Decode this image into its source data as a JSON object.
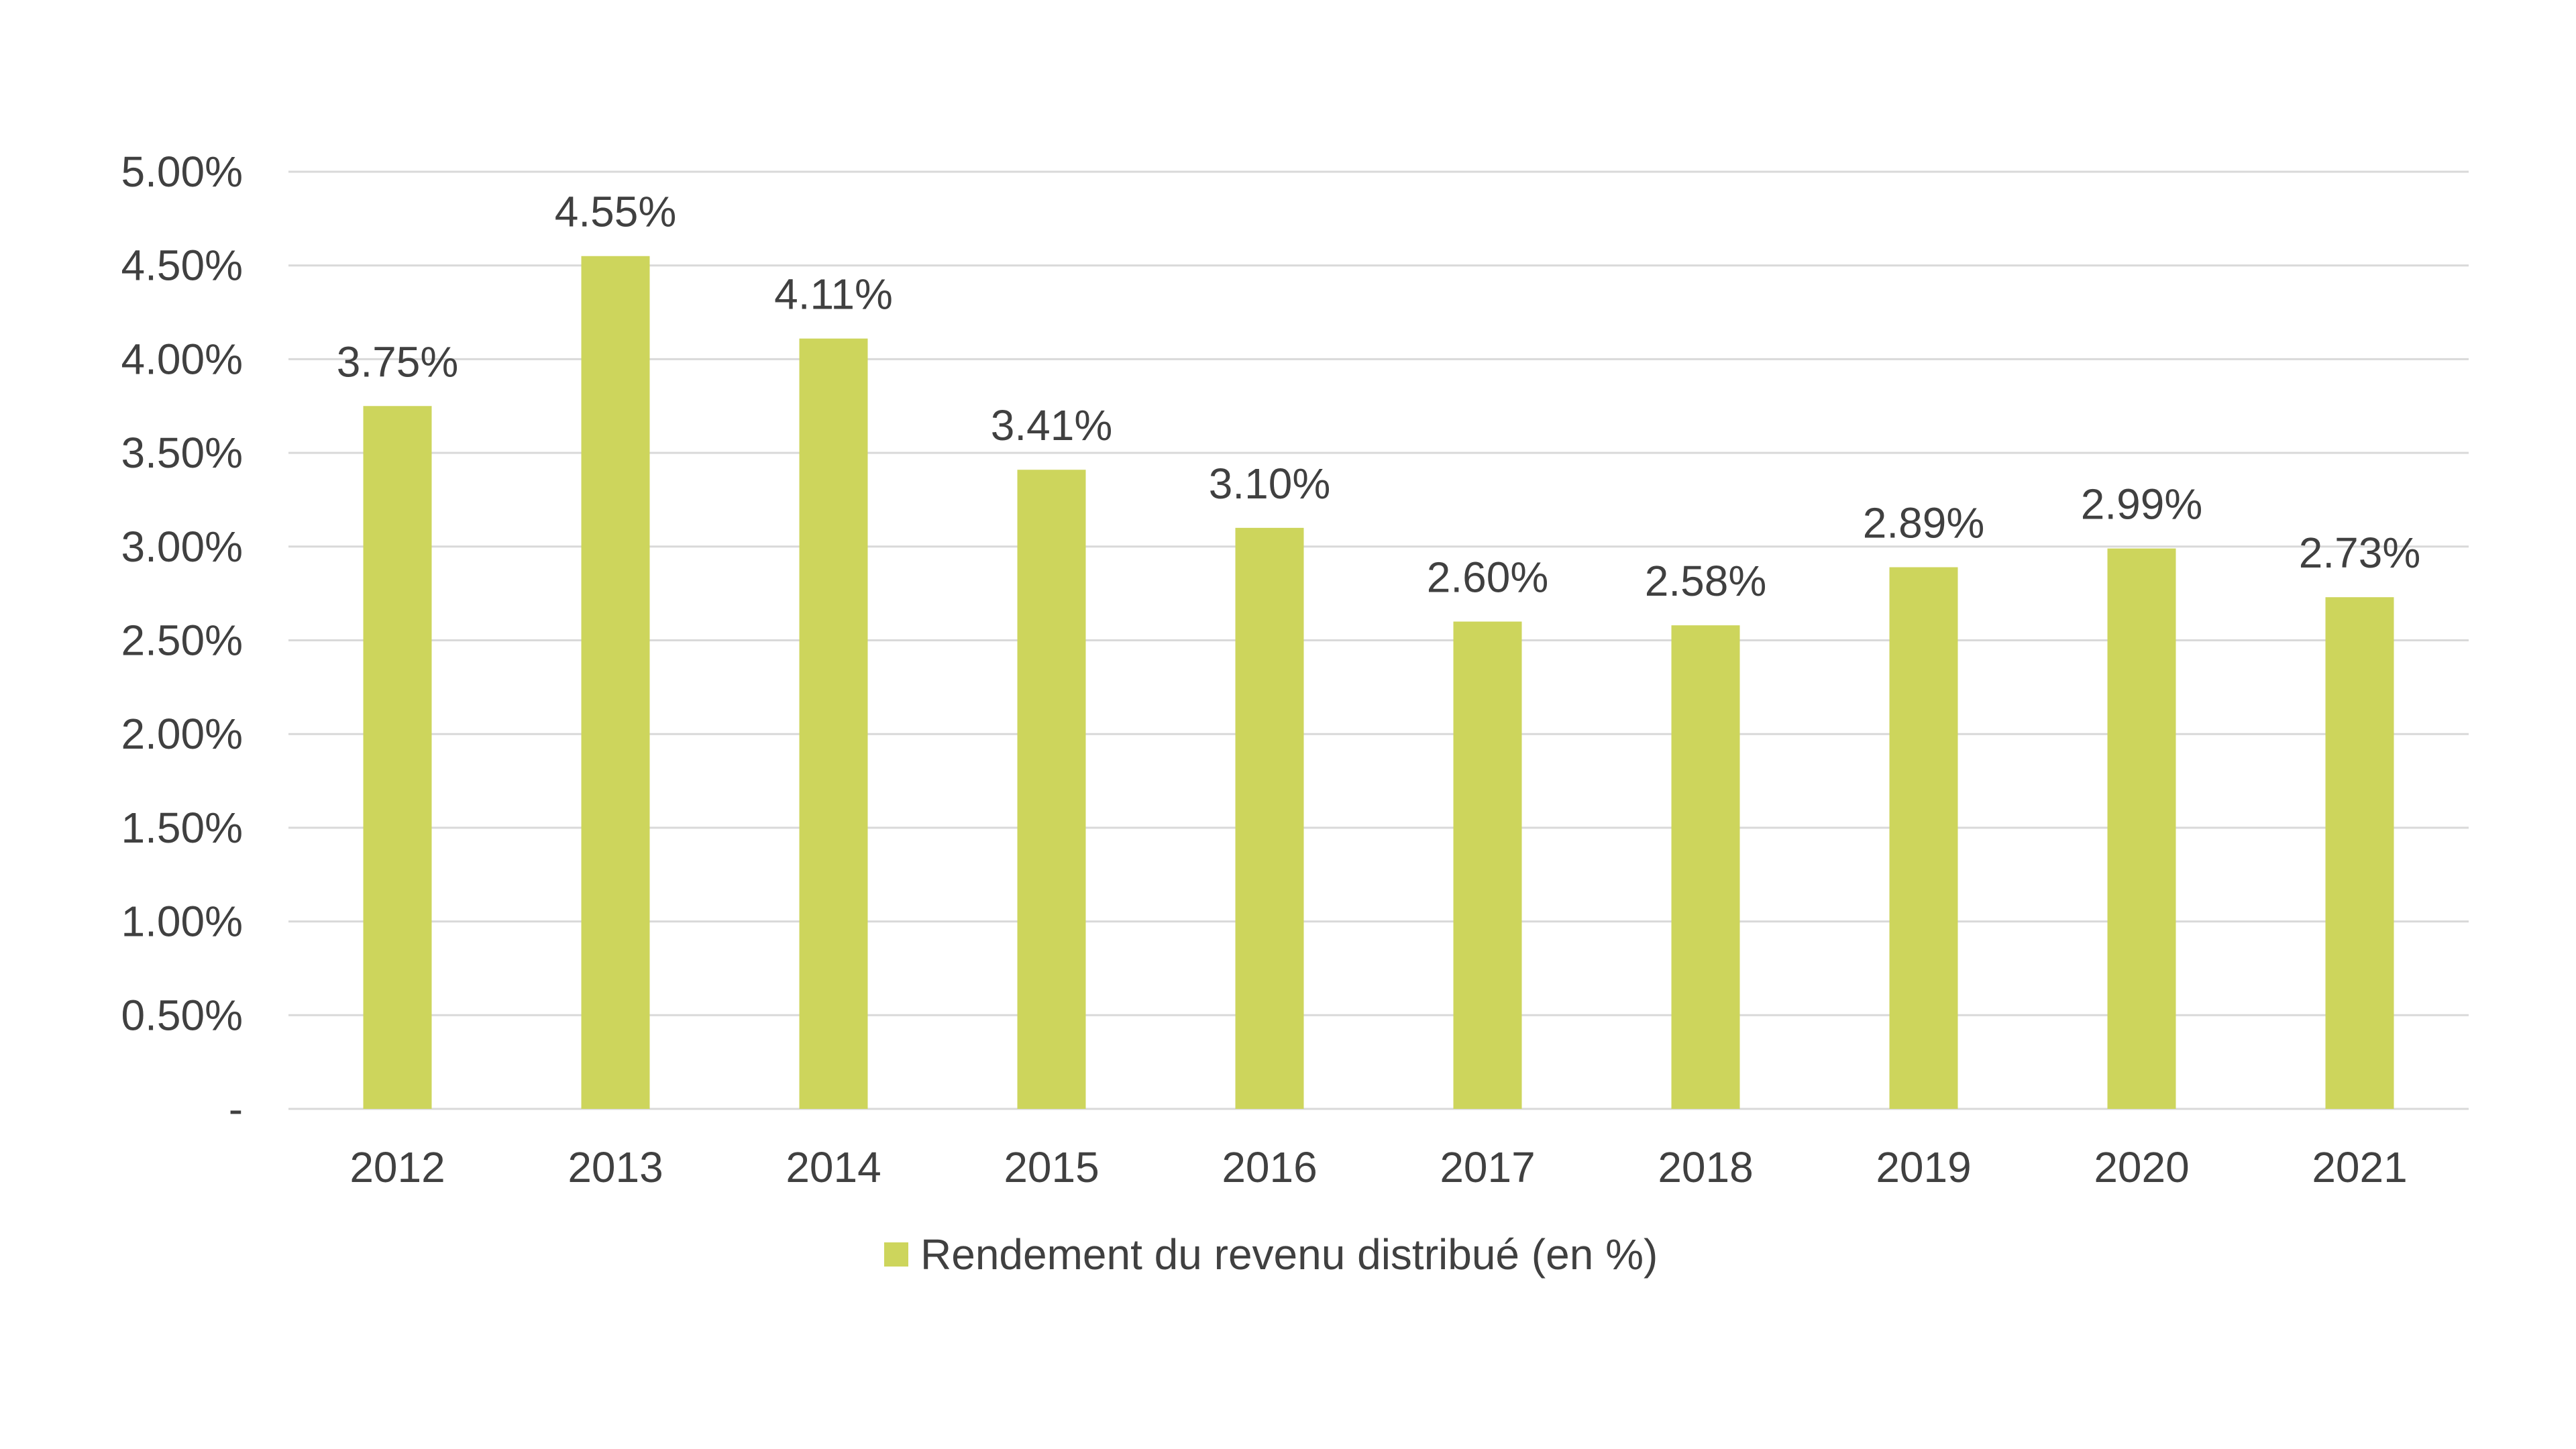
{
  "chart_data": {
    "type": "bar",
    "title": "",
    "xlabel": "",
    "ylabel": "",
    "categories": [
      "2012",
      "2013",
      "2014",
      "2015",
      "2016",
      "2017",
      "2018",
      "2019",
      "2020",
      "2021"
    ],
    "series": [
      {
        "name": "Rendement du revenu distribué (en %)",
        "values": [
          3.75,
          4.55,
          4.11,
          3.41,
          3.1,
          2.6,
          2.58,
          2.89,
          2.99,
          2.73
        ],
        "data_labels": [
          "3.75%",
          "4.55%",
          "4.11%",
          "3.41%",
          "3.10%",
          "2.60%",
          "2.58%",
          "2.89%",
          "2.99%",
          "2.73%"
        ],
        "color": "#cdd55c"
      }
    ],
    "ylim": [
      0,
      5
    ],
    "yticks": [
      0,
      0.5,
      1,
      1.5,
      2,
      2.5,
      3,
      3.5,
      4,
      4.5,
      5
    ],
    "ytick_labels": [
      "-",
      "0.50%",
      "1.00%",
      "1.50%",
      "2.00%",
      "2.50%",
      "3.00%",
      "3.50%",
      "4.00%",
      "4.50%",
      "5.00%"
    ],
    "grid": true,
    "legend_position": "bottom",
    "colors": {
      "bar": "#cdd55c",
      "grid": "#d9d9d9",
      "text": "#404040"
    }
  }
}
